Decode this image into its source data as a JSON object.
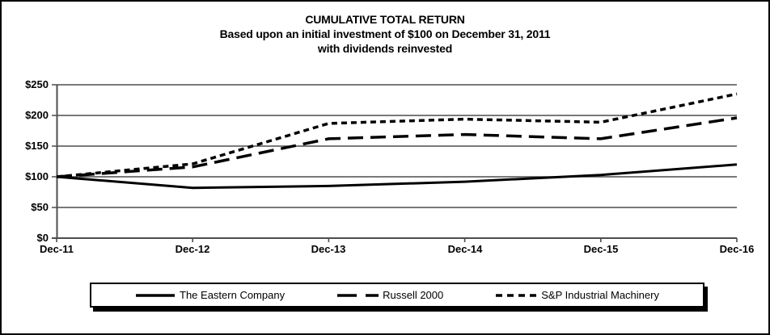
{
  "title": {
    "line1": "CUMULATIVE TOTAL RETURN",
    "line2": "Based upon an initial investment of $100 on December 31, 2011",
    "line3": "with dividends reinvested"
  },
  "chart_data": {
    "type": "line",
    "title": "CUMULATIVE TOTAL RETURN",
    "subtitle": "Based upon an initial investment of $100 on December 31, 2011 with dividends reinvested",
    "x_categories": [
      "Dec-11",
      "Dec-12",
      "Dec-13",
      "Dec-14",
      "Dec-15",
      "Dec-16"
    ],
    "y_tick_labels": [
      "$0",
      "$50",
      "$100",
      "$150",
      "$200",
      "$250"
    ],
    "y_tick_values": [
      0,
      50,
      100,
      150,
      200,
      250
    ],
    "ylim": [
      0,
      250
    ],
    "grid": true,
    "legend_position": "bottom",
    "line_color": "#000000",
    "axis_color": "#4d4d4d",
    "background_color": "#ffffff",
    "series": [
      {
        "name": "The Eastern Company",
        "dash": "solid",
        "values": [
          100,
          82,
          85,
          92,
          103,
          120
        ]
      },
      {
        "name": "Russell 2000",
        "dash": "long-dash",
        "values": [
          100,
          116,
          162,
          169,
          162,
          196
        ]
      },
      {
        "name": "S&P Industrial Machinery",
        "dash": "short-dash",
        "values": [
          100,
          121,
          187,
          194,
          189,
          235
        ]
      }
    ]
  }
}
